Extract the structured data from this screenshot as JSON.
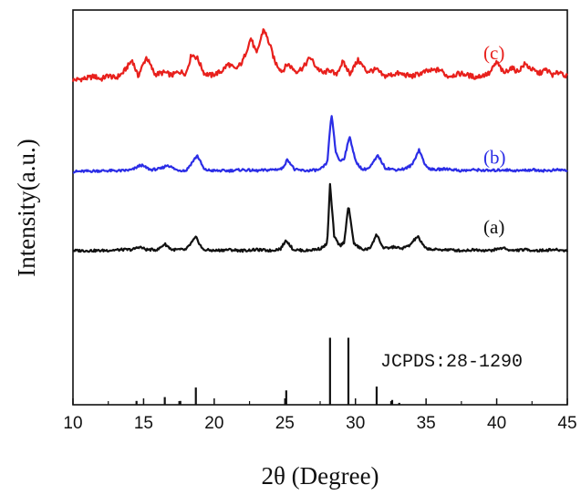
{
  "chart_data": {
    "type": "line",
    "xlabel": "2θ (Degree)",
    "ylabel": "Intensity(a.u.)",
    "xlim": [
      10,
      45
    ],
    "xticks": [
      10,
      15,
      20,
      25,
      30,
      35,
      40,
      45
    ],
    "grid": false,
    "series": [
      {
        "name": "(c)",
        "color": "#e8201c",
        "baseline": 0.82,
        "points": [
          [
            10,
            1
          ],
          [
            11,
            3
          ],
          [
            11.5,
            5
          ],
          [
            12,
            2
          ],
          [
            12.5,
            6
          ],
          [
            13,
            3
          ],
          [
            13.5,
            8
          ],
          [
            14.2,
            22
          ],
          [
            14.6,
            5
          ],
          [
            15.2,
            25
          ],
          [
            15.8,
            7
          ],
          [
            16.5,
            9
          ],
          [
            17,
            6
          ],
          [
            17.5,
            10
          ],
          [
            18,
            8
          ],
          [
            18.4,
            28
          ],
          [
            18.8,
            24
          ],
          [
            19.3,
            8
          ],
          [
            19.8,
            6
          ],
          [
            20.5,
            10
          ],
          [
            21,
            18
          ],
          [
            21.5,
            12
          ],
          [
            22,
            20
          ],
          [
            22.6,
            45
          ],
          [
            23,
            28
          ],
          [
            23.5,
            55
          ],
          [
            24,
            35
          ],
          [
            24.3,
            20
          ],
          [
            24.8,
            10
          ],
          [
            25.2,
            18
          ],
          [
            25.8,
            10
          ],
          [
            26.3,
            14
          ],
          [
            26.8,
            25
          ],
          [
            27.2,
            15
          ],
          [
            27.7,
            8
          ],
          [
            28.2,
            12
          ],
          [
            28.6,
            6
          ],
          [
            29.1,
            20
          ],
          [
            29.6,
            8
          ],
          [
            30.2,
            22
          ],
          [
            30.8,
            10
          ],
          [
            31.5,
            12
          ],
          [
            32,
            5
          ],
          [
            33,
            8
          ],
          [
            34,
            5
          ],
          [
            35,
            10
          ],
          [
            36,
            12
          ],
          [
            36.5,
            5
          ],
          [
            37.5,
            8
          ],
          [
            38.5,
            4
          ],
          [
            39.5,
            8
          ],
          [
            40,
            20
          ],
          [
            40.5,
            8
          ],
          [
            41,
            14
          ],
          [
            41.5,
            10
          ],
          [
            42,
            18
          ],
          [
            42.5,
            12
          ],
          [
            43,
            8
          ],
          [
            43.5,
            12
          ],
          [
            44,
            6
          ],
          [
            44.5,
            10
          ],
          [
            45,
            4
          ]
        ]
      },
      {
        "name": "(b)",
        "color": "#2b2de6",
        "baseline": 0.588,
        "points": [
          [
            10,
            1
          ],
          [
            12,
            2
          ],
          [
            13.5,
            2
          ],
          [
            14.2,
            3
          ],
          [
            14.8,
            8
          ],
          [
            15.5,
            3
          ],
          [
            16.2,
            4
          ],
          [
            16.7,
            8
          ],
          [
            17.3,
            3
          ],
          [
            18,
            2
          ],
          [
            18.8,
            18
          ],
          [
            19.3,
            3
          ],
          [
            20,
            2
          ],
          [
            21,
            2
          ],
          [
            22,
            3
          ],
          [
            23,
            2
          ],
          [
            24,
            3
          ],
          [
            24.8,
            4
          ],
          [
            25.2,
            14
          ],
          [
            25.7,
            3
          ],
          [
            26.5,
            2
          ],
          [
            27.5,
            3
          ],
          [
            28,
            10
          ],
          [
            28.3,
            62
          ],
          [
            28.6,
            22
          ],
          [
            28.9,
            12
          ],
          [
            29.2,
            15
          ],
          [
            29.6,
            38
          ],
          [
            30,
            12
          ],
          [
            30.5,
            3
          ],
          [
            31,
            5
          ],
          [
            31.6,
            18
          ],
          [
            32.1,
            5
          ],
          [
            32.8,
            3
          ],
          [
            33.5,
            4
          ],
          [
            34,
            8
          ],
          [
            34.5,
            24
          ],
          [
            35,
            6
          ],
          [
            35.5,
            3
          ],
          [
            36.5,
            4
          ],
          [
            37.5,
            2
          ],
          [
            38.5,
            3
          ],
          [
            39.5,
            2
          ],
          [
            40.5,
            3
          ],
          [
            41.5,
            2
          ],
          [
            42.5,
            3
          ],
          [
            43.5,
            2
          ],
          [
            44.5,
            3
          ],
          [
            45,
            2
          ]
        ]
      },
      {
        "name": "(a)",
        "color": "#111111",
        "baseline": 0.388,
        "points": [
          [
            10,
            1
          ],
          [
            12,
            1
          ],
          [
            13.5,
            2
          ],
          [
            14.2,
            2
          ],
          [
            14.7,
            5
          ],
          [
            15.2,
            2
          ],
          [
            16,
            2
          ],
          [
            16.5,
            8
          ],
          [
            17,
            2
          ],
          [
            18,
            2
          ],
          [
            18.7,
            15
          ],
          [
            19.2,
            2
          ],
          [
            20,
            1
          ],
          [
            21,
            2
          ],
          [
            22,
            1
          ],
          [
            23,
            2
          ],
          [
            24,
            1
          ],
          [
            24.7,
            3
          ],
          [
            25.1,
            12
          ],
          [
            25.6,
            2
          ],
          [
            26.5,
            1
          ],
          [
            27.5,
            3
          ],
          [
            28,
            8
          ],
          [
            28.2,
            70
          ],
          [
            28.5,
            15
          ],
          [
            28.9,
            6
          ],
          [
            29.2,
            10
          ],
          [
            29.5,
            48
          ],
          [
            29.9,
            8
          ],
          [
            30.5,
            2
          ],
          [
            31,
            3
          ],
          [
            31.5,
            18
          ],
          [
            32,
            3
          ],
          [
            32.8,
            5
          ],
          [
            33.2,
            3
          ],
          [
            33.8,
            6
          ],
          [
            34.4,
            16
          ],
          [
            34.9,
            4
          ],
          [
            35.5,
            2
          ],
          [
            36.5,
            2
          ],
          [
            37.5,
            1
          ],
          [
            38.5,
            2
          ],
          [
            39.5,
            1
          ],
          [
            40.5,
            4
          ],
          [
            41,
            1
          ],
          [
            42,
            2
          ],
          [
            43,
            1
          ],
          [
            44,
            2
          ],
          [
            45,
            1
          ]
        ]
      }
    ],
    "reference": {
      "label": "JCPDS:28-1290",
      "peaks": [
        {
          "x": 14.5,
          "h": 4
        },
        {
          "x": 16.5,
          "h": 8
        },
        {
          "x": 17.6,
          "h": 4
        },
        {
          "x": 18.7,
          "h": 18
        },
        {
          "x": 25.1,
          "h": 15
        },
        {
          "x": 28.2,
          "h": 70
        },
        {
          "x": 29.5,
          "h": 70
        },
        {
          "x": 31.5,
          "h": 19
        },
        {
          "x": 32.6,
          "h": 5
        },
        {
          "x": 33.1,
          "h": 2
        }
      ]
    }
  }
}
